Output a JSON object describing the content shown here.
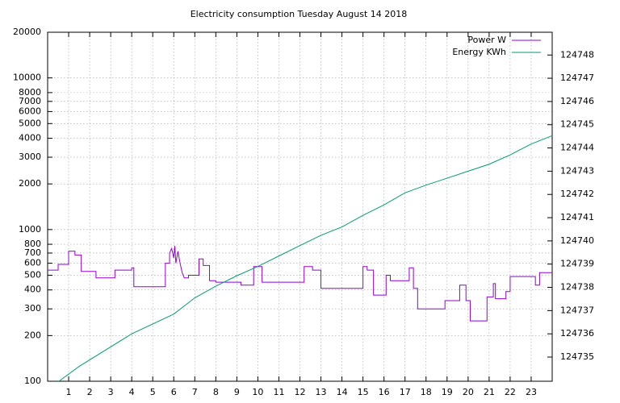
{
  "chart_data": {
    "type": "line",
    "title": "Electricity consumption Tuesday August 14 2018",
    "xlim": [
      0,
      24
    ],
    "xticks": [
      1,
      2,
      3,
      4,
      5,
      6,
      7,
      8,
      9,
      10,
      11,
      12,
      13,
      14,
      15,
      16,
      17,
      18,
      19,
      20,
      21,
      22,
      23
    ],
    "ylim": [
      100,
      20000
    ],
    "ylog": true,
    "yticks": [
      100,
      200,
      300,
      400,
      500,
      600,
      700,
      800,
      1000,
      2000,
      3000,
      4000,
      5000,
      6000,
      7000,
      8000,
      10000,
      20000
    ],
    "y2lim": [
      124733.96,
      124748.98
    ],
    "y2ticks": [
      124735,
      124736,
      124737,
      124738,
      124739,
      124740,
      124741,
      124742,
      124743,
      124744,
      124745,
      124746,
      124747,
      124748
    ],
    "grid": true,
    "legend": "top-right",
    "series": [
      {
        "name": "Power W",
        "color": "#9400d3",
        "x": [
          0,
          0.5,
          0.5,
          1,
          1,
          1.3,
          1.3,
          1.6,
          1.6,
          2.3,
          2.3,
          3.2,
          3.2,
          4.0,
          4.0,
          4.1,
          4.1,
          5.6,
          5.6,
          5.8,
          5.8,
          5.9,
          6.0,
          6.05,
          6.1,
          6.2,
          6.3,
          6.4,
          6.5,
          6.7,
          6.7,
          7.2,
          7.2,
          7.4,
          7.4,
          7.7,
          7.7,
          8.0,
          8.0,
          9.2,
          9.2,
          9.8,
          9.8,
          10.2,
          10.2,
          12.2,
          12.2,
          12.6,
          12.6,
          13,
          13,
          15,
          15,
          15.2,
          15.2,
          15.5,
          15.5,
          16.1,
          16.1,
          16.3,
          16.3,
          17.2,
          17.2,
          17.4,
          17.4,
          17.6,
          17.6,
          18.9,
          18.9,
          19.6,
          19.6,
          19.9,
          19.9,
          20.1,
          20.1,
          20.9,
          20.9,
          21.2,
          21.2,
          21.3,
          21.3,
          21.8,
          21.8,
          22,
          22,
          23.2,
          23.2,
          23.4,
          23.4,
          24
        ],
        "values": [
          540,
          540,
          590,
          590,
          720,
          720,
          680,
          680,
          530,
          530,
          480,
          480,
          540,
          540,
          560,
          560,
          420,
          420,
          600,
          600,
          700,
          750,
          650,
          780,
          600,
          720,
          600,
          520,
          480,
          480,
          500,
          500,
          640,
          640,
          580,
          580,
          460,
          460,
          450,
          450,
          430,
          430,
          570,
          570,
          450,
          450,
          570,
          570,
          540,
          540,
          410,
          410,
          570,
          570,
          540,
          540,
          370,
          370,
          500,
          500,
          460,
          460,
          560,
          560,
          410,
          410,
          300,
          300,
          340,
          340,
          430,
          430,
          340,
          340,
          250,
          250,
          360,
          360,
          440,
          440,
          350,
          350,
          390,
          390,
          490,
          490,
          430,
          430,
          520,
          520
        ]
      },
      {
        "name": "Energy KWh",
        "color": "#009e73",
        "axis": "y2",
        "x": [
          0.54,
          1.5,
          4,
          6,
          7,
          8,
          9,
          10,
          11,
          12,
          13,
          14,
          15,
          16,
          17,
          18,
          19,
          20,
          21,
          22,
          23,
          24
        ],
        "values": [
          124733.96,
          124734.6,
          124736.0,
          124736.85,
          124737.55,
          124738.05,
          124738.5,
          124738.9,
          124739.35,
          124739.8,
          124740.24,
          124740.6,
          124741.1,
          124741.55,
          124742.07,
          124742.4,
          124742.7,
          124743.0,
          124743.3,
          124743.7,
          124744.17,
          124744.53
        ]
      }
    ]
  }
}
